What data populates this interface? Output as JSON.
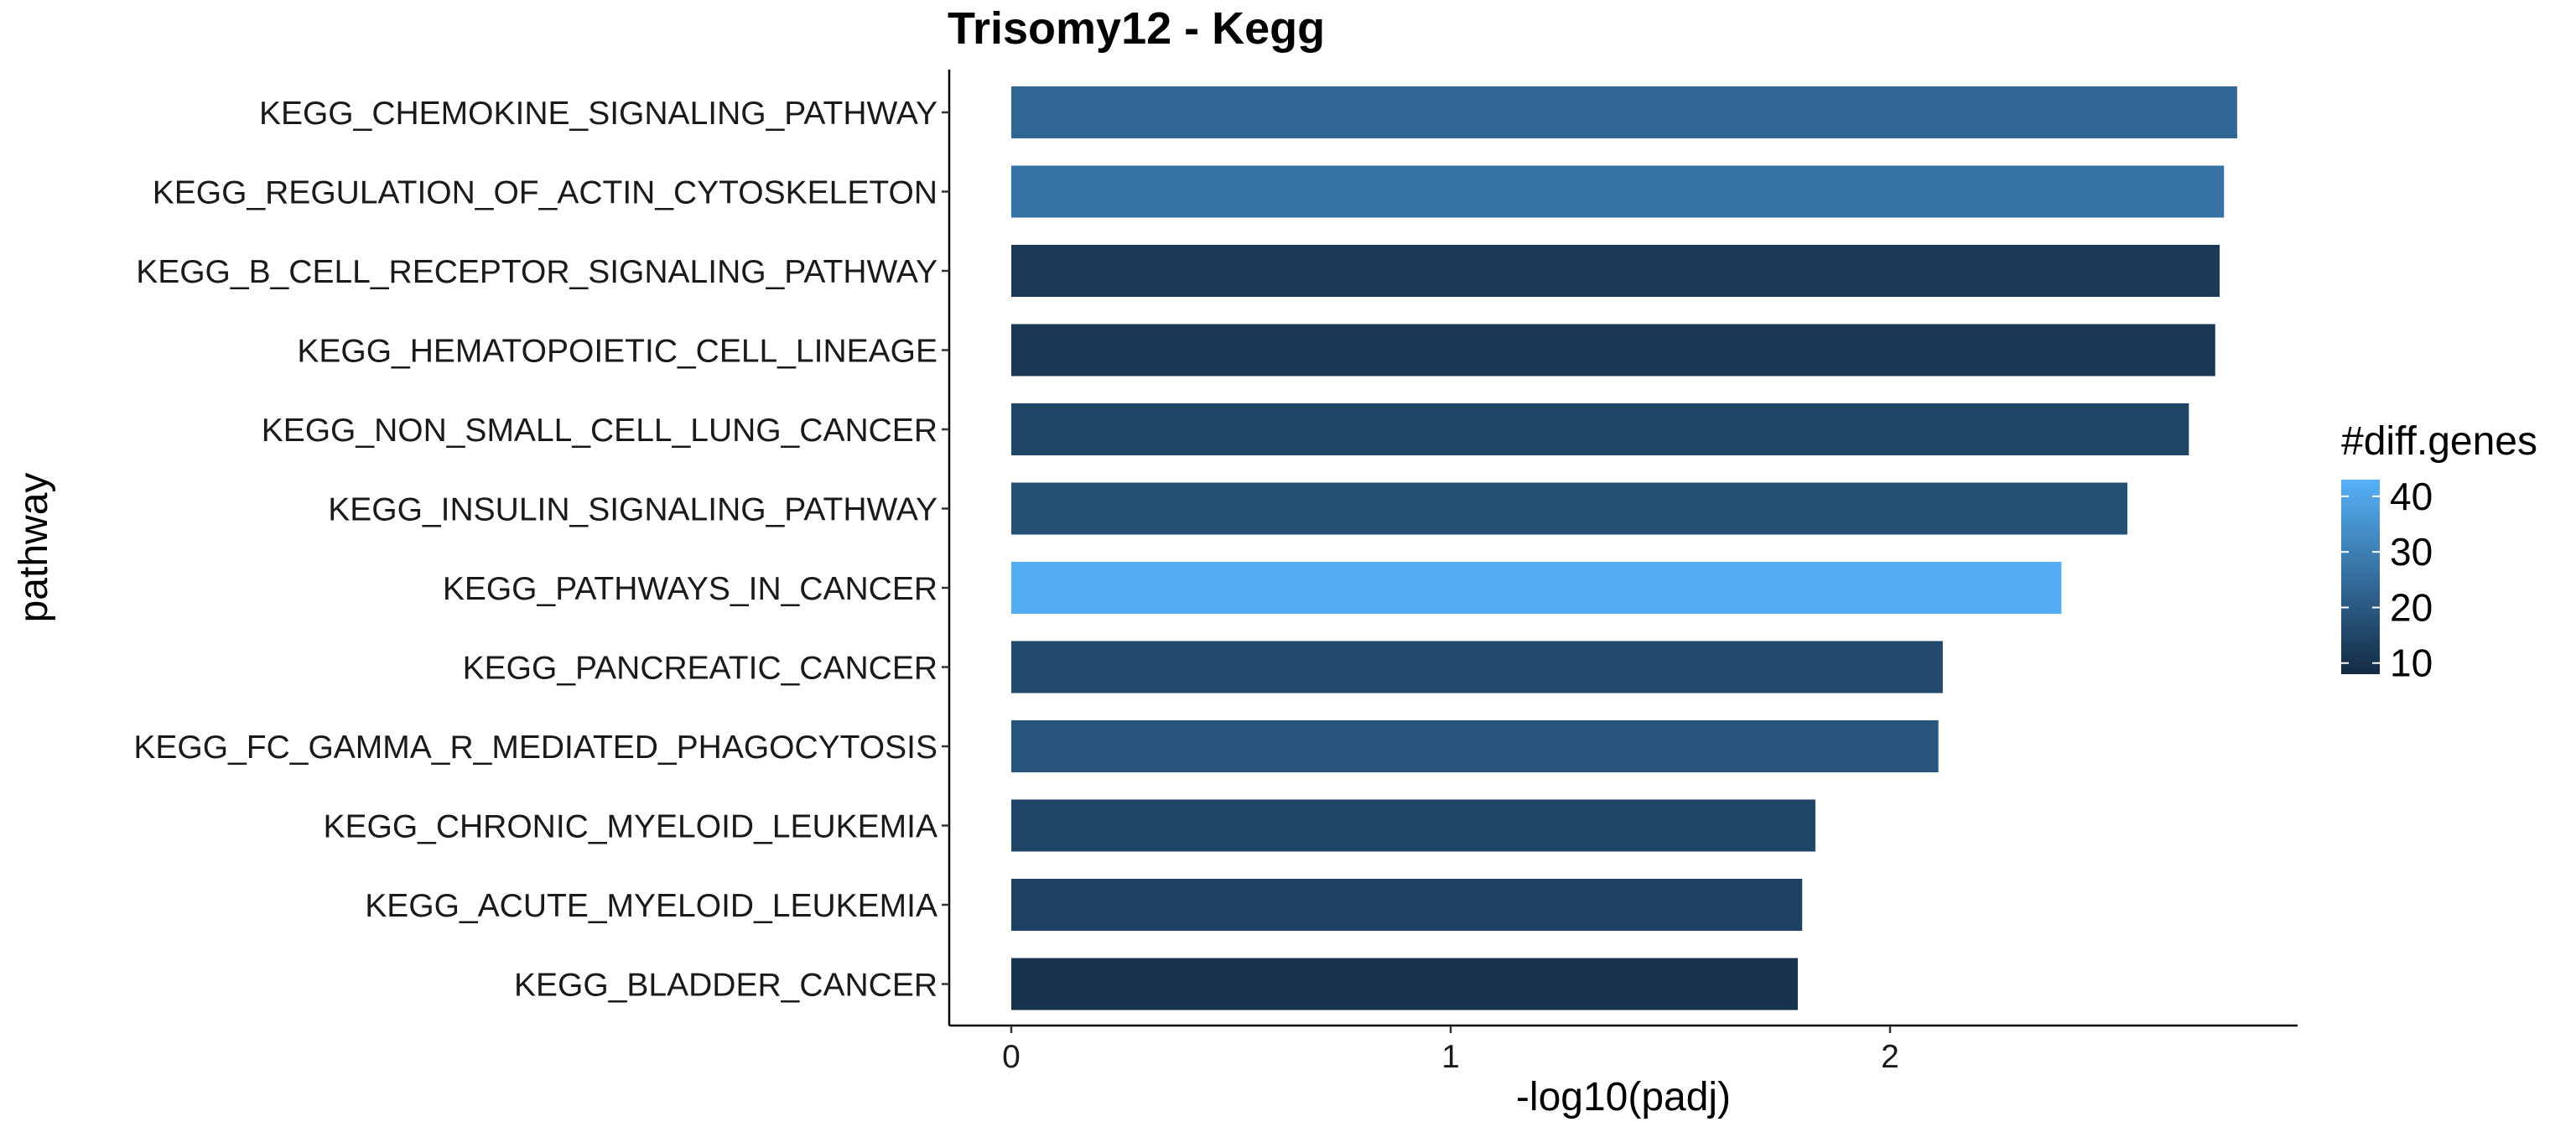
{
  "chart_data": {
    "type": "bar",
    "orientation": "horizontal",
    "title": "Trisomy12 - Kegg",
    "xlabel": "-log10(padj)",
    "ylabel": "pathway",
    "xlim": [
      0,
      2.9
    ],
    "x_ticks": [
      0,
      1,
      2
    ],
    "grid": false,
    "categories": [
      "KEGG_CHEMOKINE_SIGNALING_PATHWAY",
      "KEGG_REGULATION_OF_ACTIN_CYTOSKELETON",
      "KEGG_B_CELL_RECEPTOR_SIGNALING_PATHWAY",
      "KEGG_HEMATOPOIETIC_CELL_LINEAGE",
      "KEGG_NON_SMALL_CELL_LUNG_CANCER",
      "KEGG_INSULIN_SIGNALING_PATHWAY",
      "KEGG_PATHWAYS_IN_CANCER",
      "KEGG_PANCREATIC_CANCER",
      "KEGG_FC_GAMMA_R_MEDIATED_PHAGOCYTOSIS",
      "KEGG_CHRONIC_MYELOID_LEUKEMIA",
      "KEGG_ACUTE_MYELOID_LEUKEMIA",
      "KEGG_BLADDER_CANCER"
    ],
    "values": [
      2.79,
      2.76,
      2.75,
      2.74,
      2.68,
      2.54,
      2.39,
      2.12,
      2.11,
      1.83,
      1.8,
      1.79
    ],
    "diff_genes": [
      24,
      27,
      12,
      11,
      15,
      18,
      42,
      16,
      19,
      15,
      14,
      10
    ],
    "legend": {
      "title": "#diff.genes",
      "position": "right",
      "ticks": [
        40,
        30,
        20,
        10
      ],
      "range": [
        8,
        43
      ],
      "color_low": "#132B43",
      "color_high": "#56B1F7"
    }
  }
}
